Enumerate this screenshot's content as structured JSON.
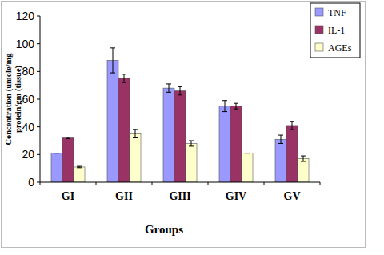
{
  "chart_data": {
    "type": "bar",
    "x_label": "Groups",
    "y_label": "Concentration (umole/mg protein/gm (tissue)",
    "categories": [
      "GI",
      "GII",
      "GIII",
      "GIV",
      "GV"
    ],
    "series": [
      {
        "name": "TNF",
        "color": "#9999ff",
        "values": [
          21,
          88,
          68,
          55,
          31
        ],
        "errors": [
          0,
          9,
          3,
          4,
          3
        ]
      },
      {
        "name": "IL-1",
        "color": "#993366",
        "values": [
          32,
          75,
          66,
          55,
          41
        ],
        "errors": [
          0.5,
          3,
          3,
          2,
          3
        ]
      },
      {
        "name": "AGEs",
        "color": "#ffffcc",
        "values": [
          11,
          35,
          28,
          21,
          17
        ],
        "errors": [
          0.5,
          3,
          2,
          0,
          2
        ]
      }
    ],
    "ylim": [
      0,
      120
    ],
    "yticks": [
      0,
      20,
      40,
      60,
      80,
      100,
      120
    ],
    "grid": false,
    "legend": "top-right"
  }
}
